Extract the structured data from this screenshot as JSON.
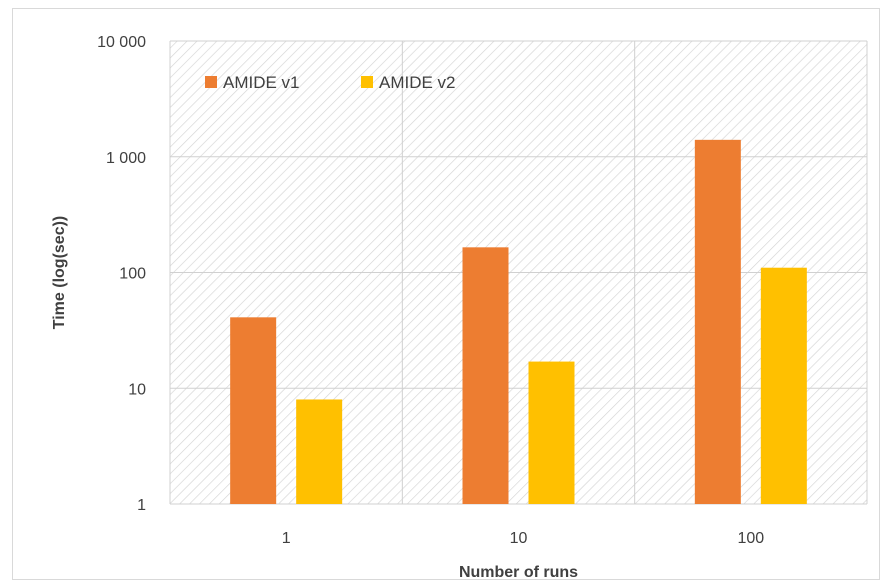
{
  "chart_data": {
    "type": "bar",
    "title": "",
    "xlabel": "Number of runs",
    "ylabel": "Time (log(sec))",
    "yscale": "log",
    "ylim": [
      1,
      10000
    ],
    "y_ticks": [
      1,
      10,
      100,
      1000,
      10000
    ],
    "y_tick_labels": [
      "1",
      "10",
      "100",
      "1 000",
      "10 000"
    ],
    "categories": [
      "1",
      "10",
      "100"
    ],
    "series": [
      {
        "name": "AMIDE v1",
        "color": "#ED7D31",
        "values": [
          41,
          165,
          1400
        ]
      },
      {
        "name": "AMIDE v2",
        "color": "#FFC000",
        "values": [
          8,
          17,
          110
        ]
      }
    ],
    "grid": true,
    "background": "diagonal-hatch",
    "legend_position": "top-left"
  }
}
